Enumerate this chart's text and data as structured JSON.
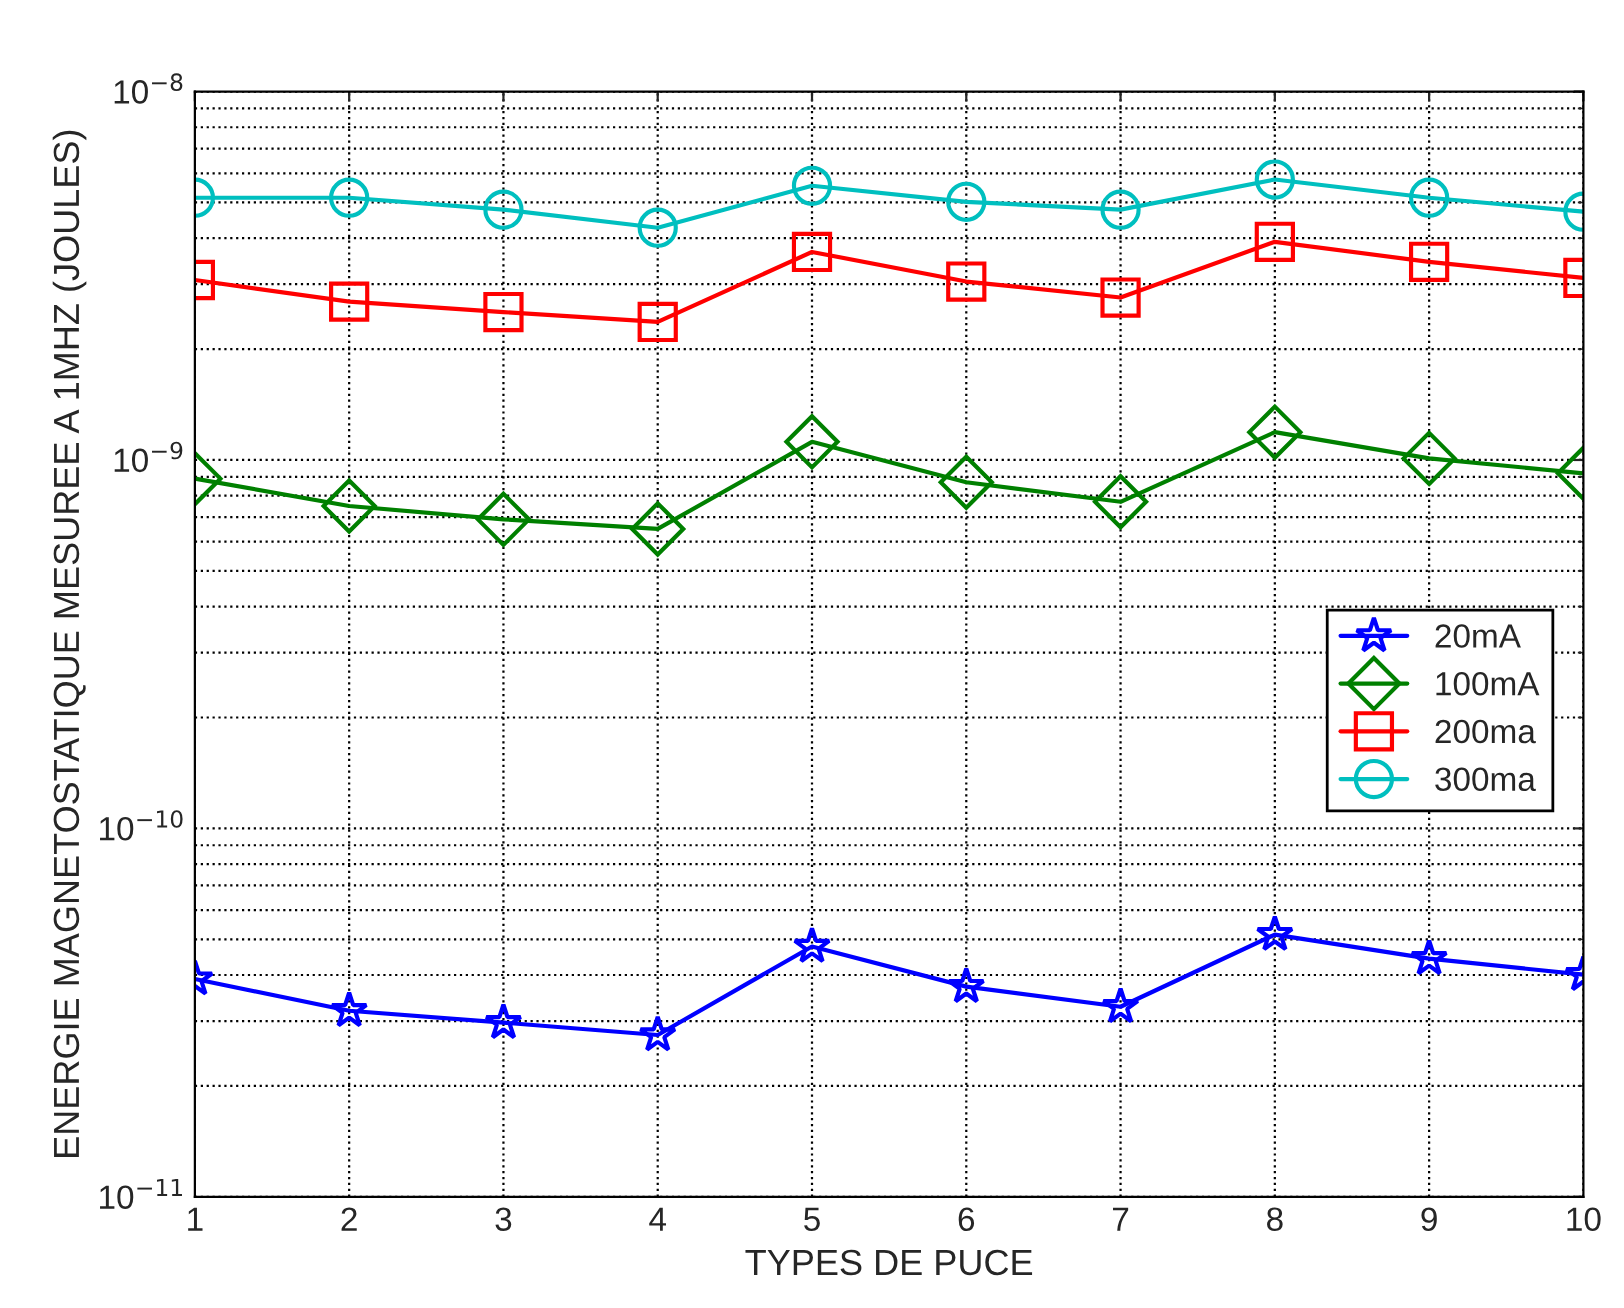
{
  "chart_data": {
    "type": "line",
    "xlabel": "TYPES DE PUCE",
    "ylabel": "ENERGIE MAGNETOSTATIQUE MESUREE A 1MHZ (JOULES)",
    "x": [
      1,
      2,
      3,
      4,
      5,
      6,
      7,
      8,
      9,
      10
    ],
    "series": [
      {
        "name": "20mA",
        "color": "#0000ff",
        "marker": "star",
        "values": [
          3.9e-11,
          3.2e-11,
          2.97e-11,
          2.75e-11,
          4.78e-11,
          3.72e-11,
          3.28e-11,
          5.15e-11,
          4.43e-11,
          4.01e-11
        ]
      },
      {
        "name": "100mA",
        "color": "#008000",
        "marker": "diamond",
        "values": [
          8.9e-10,
          7.5e-10,
          6.9e-10,
          6.5e-10,
          1.12e-09,
          8.7e-10,
          7.7e-10,
          1.19e-09,
          1.01e-09,
          9.2e-10
        ]
      },
      {
        "name": "200ma",
        "color": "#ff0000",
        "marker": "square",
        "values": [
          3.08e-09,
          2.69e-09,
          2.52e-09,
          2.37e-09,
          3.67e-09,
          3.05e-09,
          2.76e-09,
          3.91e-09,
          3.45e-09,
          3.12e-09
        ]
      },
      {
        "name": "300ma",
        "color": "#00bfbf",
        "marker": "circle",
        "values": [
          5.15e-09,
          5.15e-09,
          4.78e-09,
          4.27e-09,
          5.55e-09,
          5.02e-09,
          4.78e-09,
          5.77e-09,
          5.15e-09,
          4.72e-09
        ]
      }
    ],
    "log": "y",
    "xlim": [
      1,
      10
    ],
    "xticks": [
      1,
      2,
      3,
      4,
      5,
      6,
      7,
      8,
      9,
      10
    ],
    "ylim": [
      1e-11,
      1e-08
    ],
    "yticks": [
      {
        "value": 1e-11,
        "label": "10$^{−11}$"
      },
      {
        "value": 1e-10,
        "label": "10$^{−10}$"
      },
      {
        "value": 1e-09,
        "label": "10$^{−9}$"
      },
      {
        "value": 1e-08,
        "label": "10$^{−8}$"
      }
    ],
    "grid": true,
    "legend": "right",
    "line_style": "solid"
  }
}
